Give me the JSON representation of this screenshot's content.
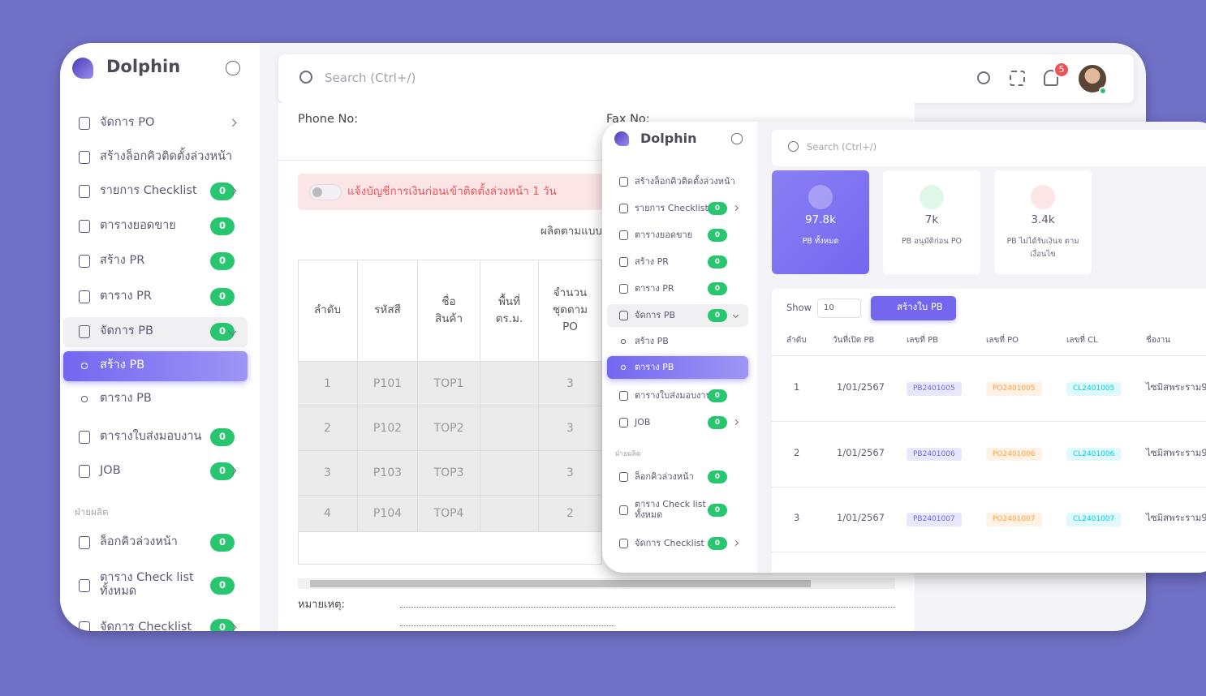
{
  "brand": "Dolphin",
  "search": "Search (Ctrl+/)",
  "notification_count": 5,
  "sidebar": {
    "items": [
      {
        "label": "จัดการ PO",
        "chevron": "right"
      },
      {
        "label": "สร้างล็อกคิวติดตั้งล่วงหน้า"
      },
      {
        "label": "รายการ Checklist",
        "badge": 0,
        "chevron": "right"
      },
      {
        "label": "ตารางยอดขาย",
        "badge": 0
      },
      {
        "label": "สร้าง PR",
        "badge": 0
      },
      {
        "label": "ตาราง PR",
        "badge": 0
      },
      {
        "label": "จัดการ PB",
        "badge": 0,
        "chevron": "down"
      },
      {
        "label": "สร้าง PB",
        "sub": true
      },
      {
        "label": "ตาราง PB",
        "sub": true
      },
      {
        "label": "ตารางใบส่งมอบงาน",
        "badge": 0
      },
      {
        "label": "JOB",
        "badge": 0,
        "chevron": "right"
      }
    ],
    "section": "ฝ่ายผลิต",
    "section_items": [
      {
        "label": "ล็อกคิวล่วงหน้า",
        "badge": 0
      },
      {
        "label": "ตาราง Check list ทั้งหมด",
        "badge": 0
      },
      {
        "label": "จัดการ Checklist",
        "badge": 0,
        "chevron": "right"
      }
    ]
  },
  "document": {
    "phone": "Phone No:",
    "fax": "Fax No:",
    "alert": "แจ้งบัญชีการเงินก่อนเข้าติดตั้งล่วงหน้า 1 วัน",
    "produce": "ผลิตตามแบบ",
    "remark": "หมายเหตุ:",
    "table": {
      "headers": [
        "ลำดับ",
        "รหัสสี",
        "ชื่อสินค้า",
        "พื้นที่ ตร.ม.",
        "จำนวนชุดตาม PO"
      ],
      "rows": [
        [
          1,
          "P101",
          "TOP1",
          null,
          3
        ],
        [
          2,
          "P102",
          "TOP2",
          null,
          3
        ],
        [
          3,
          "P103",
          "TOP3",
          null,
          3
        ],
        [
          4,
          "P104",
          "TOP4",
          null,
          2
        ]
      ]
    }
  },
  "window2": {
    "brand": "Dolphin",
    "search": "Search (Ctrl+/)",
    "sidebar": {
      "items": [
        {
          "label": "สร้างล็อกคิวติดตั้งล่วงหน้า"
        },
        {
          "label": "รายการ Checklist",
          "badge": 0,
          "chevron": "right"
        },
        {
          "label": "ตารางยอดขาย",
          "badge": 0
        },
        {
          "label": "สร้าง PR",
          "badge": 0
        },
        {
          "label": "ตาราง PR",
          "badge": 0
        },
        {
          "label": "จัดการ PB",
          "badge": 0,
          "chevron": "down"
        },
        {
          "label": "สร้าง PB",
          "sub": true
        },
        {
          "label": "ตาราง PB",
          "sub": true
        },
        {
          "label": "ตารางใบส่งมอบงาน",
          "badge": 0
        },
        {
          "label": "JOB",
          "badge": 0,
          "chevron": "right"
        }
      ],
      "section": "ฝ่ายผลิต",
      "section_items": [
        {
          "label": "ล็อกคิวล่วงหน้า",
          "badge": 0
        },
        {
          "label": "ตาราง Check list ทั้งหมด",
          "badge": 0
        },
        {
          "label": "จัดการ Checklist",
          "badge": 0,
          "chevron": "right"
        }
      ]
    },
    "stats": [
      {
        "value": "97.8k",
        "label": "PB ทั้งหมด"
      },
      {
        "value": "7k",
        "label": "PB อนุมัติก่อน PO"
      },
      {
        "value": "3.4k",
        "label": "PB ไม่ได้รับเงินจ ตามเงื่อนไข"
      }
    ],
    "show": "Show",
    "page_size": 10,
    "create": "สร้างใบ PB",
    "table": {
      "headers": [
        "ลำดับ",
        "วันที่เปิด PB",
        "เลขที่ PB",
        "เลขที่ PO",
        "เลขที่ CL",
        "ชื่องาน"
      ],
      "rows": [
        [
          1,
          "1/01/2567",
          "PB2401005",
          "PO2401005",
          "CL2401005",
          "ไซมิสพระราม9"
        ],
        [
          2,
          "1/01/2567",
          "PB2401006",
          "PO2401006",
          "CL2401006",
          "ไซมิสพระราม9"
        ],
        [
          3,
          "1/01/2567",
          "PB2401007",
          "PO2401007",
          "CL2401007",
          "ไซมิสพระราม9"
        ]
      ]
    }
  }
}
